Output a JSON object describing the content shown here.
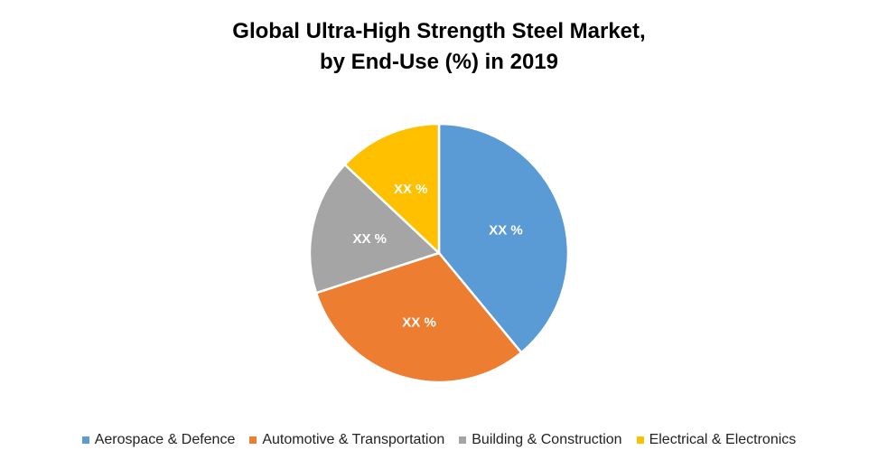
{
  "chart_data": {
    "type": "pie",
    "title_line1": "Global Ultra-High Strength Steel Market,",
    "title_line2": "by End-Use  (%) in 2019",
    "categories": [
      "Aerospace & Defence",
      "Automotive & Transportation",
      "Building & Construction",
      "Electrical & Electronics"
    ],
    "values": [
      39,
      31,
      17,
      13
    ],
    "data_labels": [
      "XX %",
      "XX %",
      "XX %",
      "XX %"
    ],
    "colors": [
      "#5B9BD5",
      "#ED7D31",
      "#A5A5A5",
      "#FFC000"
    ],
    "legend_position": "bottom"
  }
}
